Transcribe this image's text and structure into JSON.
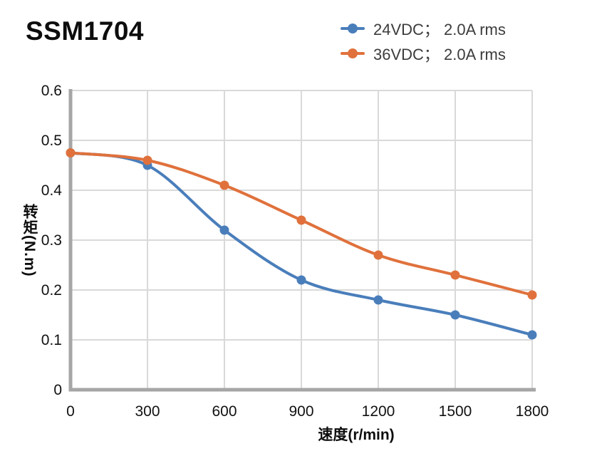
{
  "chart_data": {
    "type": "line",
    "title": "SSM1704",
    "xlabel": "速度(r/min)",
    "ylabel": "转矩(N.m)",
    "x": [
      0,
      300,
      600,
      900,
      1200,
      1500,
      1800
    ],
    "xlim": [
      0,
      1800
    ],
    "ylim": [
      0,
      0.6
    ],
    "x_ticks": [
      "0",
      "300",
      "600",
      "900",
      "1200",
      "1500",
      "1800"
    ],
    "y_ticks": [
      "0",
      "0.1",
      "0.2",
      "0.3",
      "0.4",
      "0.5",
      "0.6"
    ],
    "grid": true,
    "legend_position": "top-right",
    "series": [
      {
        "name": "24VDC； 2.0A rms",
        "color": "#4A7EBB",
        "values": [
          0.475,
          0.45,
          0.32,
          0.22,
          0.18,
          0.15,
          0.11
        ]
      },
      {
        "name": "36VDC； 2.0A rms",
        "color": "#E0713C",
        "values": [
          0.475,
          0.46,
          0.41,
          0.34,
          0.27,
          0.23,
          0.19
        ]
      }
    ],
    "colors": {
      "axis": "#A6A6A6",
      "grid": "#D9D9D9",
      "tick_text": "#111111",
      "legend_text": "#3C3C3C"
    }
  }
}
